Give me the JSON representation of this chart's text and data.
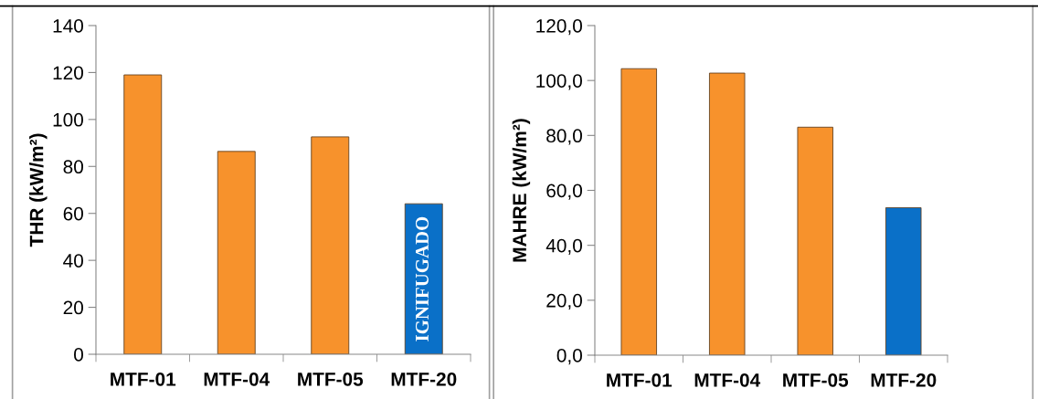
{
  "chart_data": [
    {
      "type": "bar",
      "ylabel": "THR (kW/m²)",
      "categories": [
        "MTF-01",
        "MTF-04",
        "MTF-05",
        "MTF-20"
      ],
      "values": [
        119.0,
        86.4,
        92.6,
        64.1
      ],
      "colors": [
        "#f7922c",
        "#f7922c",
        "#f7922c",
        "#0a70c8"
      ],
      "ylim": [
        0,
        140
      ],
      "yticks": [
        0,
        20,
        40,
        60,
        80,
        100,
        120,
        140
      ],
      "grid": false,
      "annotations": [
        "IGNIFUGADO"
      ]
    },
    {
      "type": "bar",
      "ylabel": "MAHRE (kW/m²)",
      "categories": [
        "MTF-01",
        "MTF-04",
        "MTF-05",
        "MTF-20"
      ],
      "values": [
        104.3,
        102.7,
        83.0,
        53.7
      ],
      "colors": [
        "#f7922c",
        "#f7922c",
        "#f7922c",
        "#0a70c8"
      ],
      "ylim": [
        0,
        120
      ],
      "yticks": [
        {
          "value": 0,
          "label": "0,0"
        },
        {
          "value": 20,
          "label": "20,0"
        },
        {
          "value": 40,
          "label": "40,0"
        },
        {
          "value": 60,
          "label": "60,0"
        },
        {
          "value": 80,
          "label": "80,0"
        },
        {
          "value": 100,
          "label": "100,0"
        },
        {
          "value": 120,
          "label": "120,0"
        }
      ],
      "grid": false
    }
  ]
}
